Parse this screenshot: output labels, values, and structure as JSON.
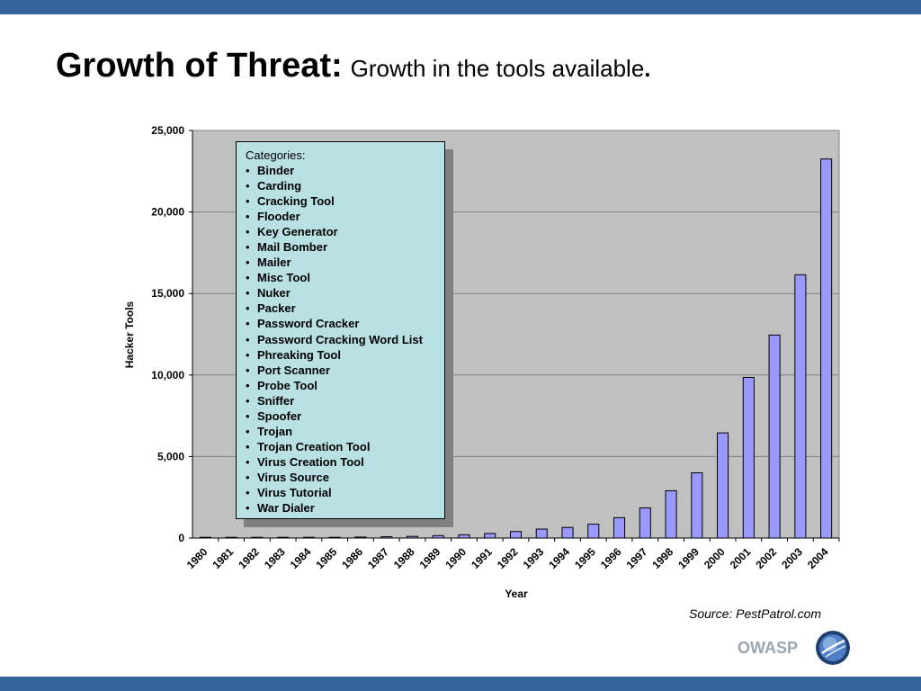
{
  "slide": {
    "title_main": "Growth of Threat:",
    "title_sub": "Growth in the tools available",
    "title_end": ".",
    "source": "Source: PestPatrol.com",
    "logo_text": "OWASP"
  },
  "colors": {
    "band": "#35649a",
    "plot_background": "#c0c0c0",
    "bar_fill": "#9999ff",
    "legend_background": "#b9e0e3"
  },
  "legend": {
    "title": "Categories:",
    "items": [
      "Binder",
      "Carding",
      "Cracking Tool",
      "Flooder",
      "Key Generator",
      "Mail Bomber",
      "Mailer",
      "Misc Tool",
      "Nuker",
      "Packer",
      "Password Cracker",
      "Password Cracking Word List",
      "Phreaking Tool",
      "Port Scanner",
      "Probe Tool",
      "Sniffer",
      "Spoofer",
      "Trojan",
      "Trojan Creation Tool",
      "Virus Creation Tool",
      "Virus Source",
      "Virus Tutorial",
      "War Dialer"
    ]
  },
  "chart_data": {
    "type": "bar",
    "title": "",
    "xlabel": "Year",
    "ylabel": "Hacker Tools",
    "categories": [
      "1980",
      "1981",
      "1982",
      "1983",
      "1984",
      "1985",
      "1986",
      "1987",
      "1988",
      "1989",
      "1990",
      "1991",
      "1992",
      "1993",
      "1994",
      "1995",
      "1996",
      "1997",
      "1998",
      "1999",
      "2000",
      "2001",
      "2002",
      "2003",
      "2004"
    ],
    "values": [
      5,
      10,
      15,
      20,
      30,
      40,
      60,
      80,
      100,
      150,
      200,
      280,
      400,
      550,
      650,
      850,
      1250,
      1850,
      2900,
      4000,
      6450,
      9850,
      12450,
      16150,
      23250
    ],
    "ylim": [
      0,
      25000
    ],
    "yticks": [
      0,
      5000,
      10000,
      15000,
      20000,
      25000
    ],
    "ytick_labels": [
      "0",
      "5,000",
      "10,000",
      "15,000",
      "20,000",
      "25,000"
    ],
    "grid": true,
    "legend": "none"
  }
}
